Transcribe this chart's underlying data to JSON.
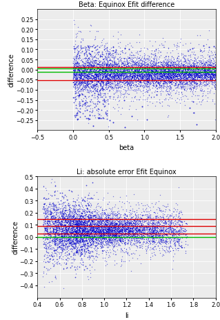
{
  "plot1": {
    "title": "Beta: Equinox Efit difference",
    "xlabel": "beta",
    "ylabel": "difference",
    "xlim": [
      -0.5,
      2.0
    ],
    "ylim": [
      -0.3,
      0.3
    ],
    "yticks": [
      -0.25,
      -0.2,
      -0.15,
      -0.1,
      -0.05,
      0.0,
      0.05,
      0.1,
      0.15,
      0.2,
      0.25
    ],
    "xticks": [
      -0.5,
      0.0,
      0.5,
      1.0,
      1.5,
      2.0
    ],
    "hline_green1": 0.005,
    "hline_green2": -0.012,
    "hline_red1": 0.012,
    "hline_red2": -0.052,
    "dot_color": "#0000cc",
    "green_color": "#00bb00",
    "red_color": "#dd0000",
    "bg_color": "#ececec"
  },
  "plot2": {
    "title": "Li: absolute error Efit Equinox",
    "xlabel": "li",
    "ylabel": "difference",
    "xlim": [
      0.4,
      2.0
    ],
    "ylim": [
      -0.5,
      0.5
    ],
    "yticks": [
      -0.4,
      -0.3,
      -0.2,
      -0.1,
      0.0,
      0.1,
      0.2,
      0.3,
      0.4,
      0.5
    ],
    "xticks": [
      0.4,
      0.6,
      0.8,
      1.0,
      1.2,
      1.4,
      1.6,
      1.8,
      2.0
    ],
    "hline_green": 0.0,
    "hline_red1": 0.03,
    "hline_red2": 0.09,
    "hline_red3": 0.145,
    "dot_color": "#0000cc",
    "green_color": "#00bb00",
    "red_color": "#dd0000",
    "bg_color": "#ececec"
  }
}
